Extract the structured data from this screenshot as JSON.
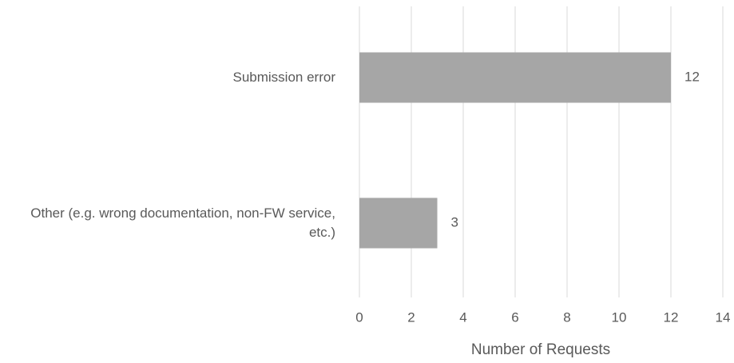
{
  "chart_data": {
    "type": "bar",
    "orientation": "horizontal",
    "x_label": "Number of Requests",
    "categories": [
      "Submission error",
      "Other (e.g. wrong documentation, non-FW service, etc.)"
    ],
    "values": [
      12,
      3
    ],
    "color": "#a6a6a6",
    "xlim": [
      0,
      14
    ],
    "xticks": [
      0,
      2,
      4,
      6,
      8,
      10,
      12,
      14
    ],
    "grid": true
  }
}
